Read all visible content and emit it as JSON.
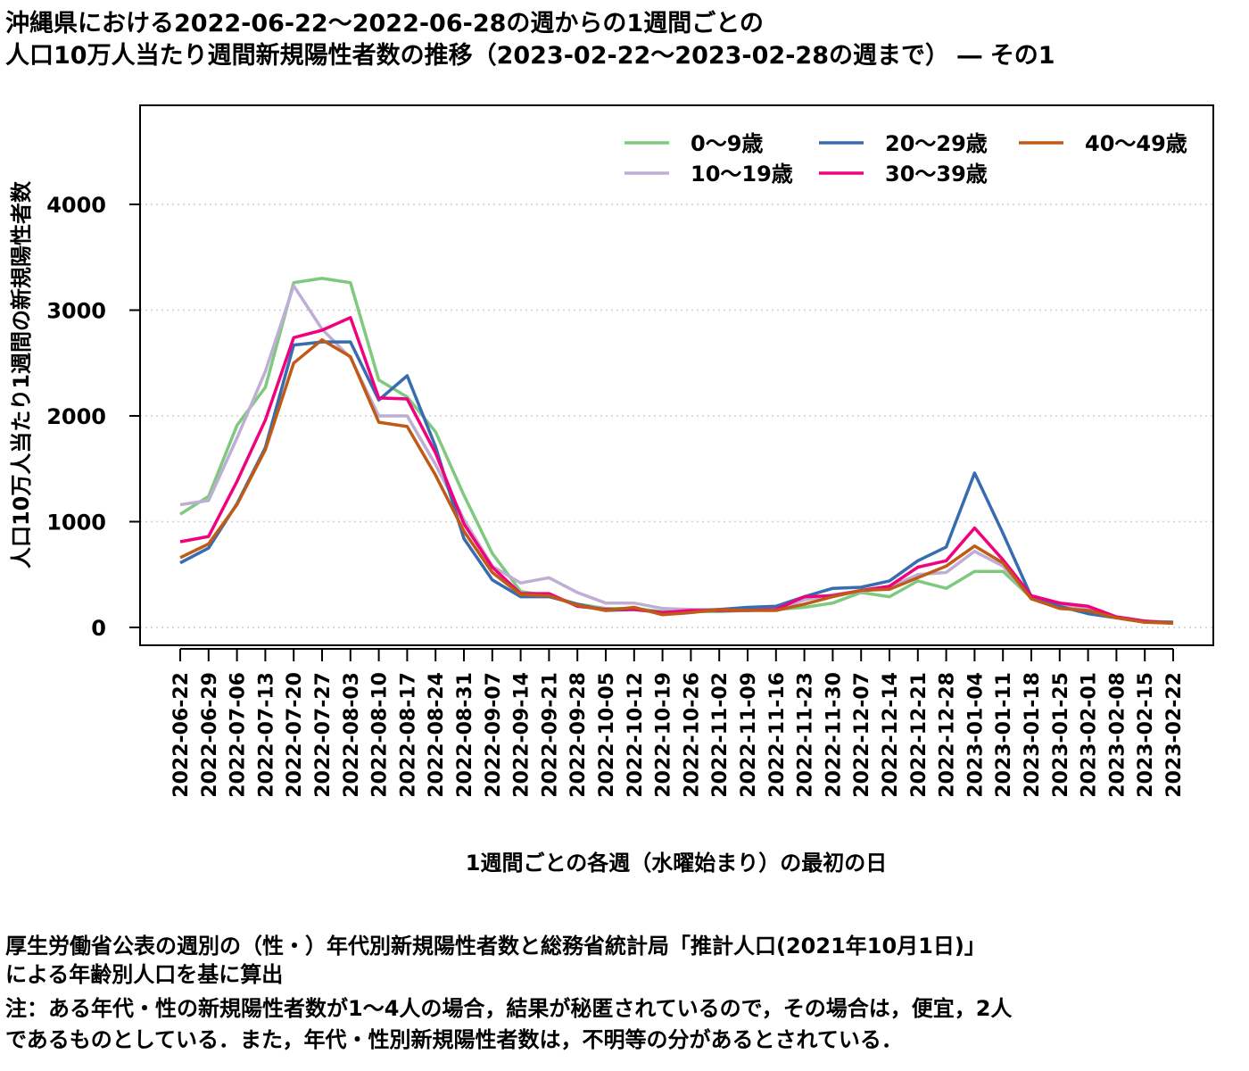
{
  "title_line1": "沖縄県における2022-06-22～2022-06-28の週からの1週間ごとの",
  "title_line2": "人口10万人当たり週間新規陽性者数の推移（2023-02-22～2023-02-28の週まで） ― その1",
  "notes": {
    "line1": "厚生労働省公表の週別の（性・）年代別新規陽性者数と総務省統計局「推計人口(2021年10月1日)」",
    "line2": "による年齢別人口を基に算出",
    "line3": "注：ある年代・性の新規陽性者数が1～4人の場合，結果が秘匿されているので，その場合は，便宜，2人",
    "line4": "であるものとしている．また，年代・性別新規陽性者数は，不明等の分があるとされている．"
  },
  "chart_data": {
    "type": "line",
    "xlabel": "1週間ごとの各週（水曜始まり）の最初の日",
    "ylabel": "人口10万人当たり1週間の新規陽性者数",
    "ylim": [
      -100,
      4950
    ],
    "yticks": [
      0,
      1000,
      2000,
      3000,
      4000
    ],
    "grid": "horizontal dotted",
    "legend_position": "top-right",
    "categories": [
      "2022-06-22",
      "2022-06-29",
      "2022-07-06",
      "2022-07-13",
      "2022-07-20",
      "2022-07-27",
      "2022-08-03",
      "2022-08-10",
      "2022-08-17",
      "2022-08-24",
      "2022-08-31",
      "2022-09-07",
      "2022-09-14",
      "2022-09-21",
      "2022-09-28",
      "2022-10-05",
      "2022-10-12",
      "2022-10-19",
      "2022-10-26",
      "2022-11-02",
      "2022-11-09",
      "2022-11-16",
      "2022-11-23",
      "2022-11-30",
      "2022-12-07",
      "2022-12-14",
      "2022-12-21",
      "2022-12-28",
      "2023-01-04",
      "2023-01-11",
      "2023-01-18",
      "2023-01-25",
      "2023-02-01",
      "2023-02-08",
      "2023-02-15",
      "2023-02-22"
    ],
    "series": [
      {
        "name": "0～9歳",
        "color": "#7fc97f",
        "values": [
          1070,
          1240,
          1910,
          2270,
          3260,
          3300,
          3260,
          2340,
          2180,
          1850,
          1250,
          700,
          340,
          300,
          220,
          180,
          180,
          150,
          150,
          150,
          160,
          170,
          190,
          230,
          330,
          290,
          440,
          370,
          530,
          530,
          280,
          200,
          160,
          90,
          60,
          50
        ]
      },
      {
        "name": "10～19歳",
        "color": "#beaed4",
        "values": [
          1160,
          1200,
          1790,
          2420,
          3230,
          2820,
          2550,
          2000,
          2000,
          1540,
          1020,
          580,
          420,
          470,
          330,
          230,
          230,
          180,
          170,
          170,
          170,
          170,
          260,
          310,
          340,
          380,
          500,
          520,
          720,
          580,
          280,
          220,
          180,
          90,
          50,
          40
        ]
      },
      {
        "name": "20～29歳",
        "color": "#386cb0",
        "values": [
          610,
          750,
          1170,
          1700,
          2670,
          2700,
          2700,
          2150,
          2380,
          1710,
          840,
          450,
          290,
          290,
          220,
          160,
          170,
          140,
          150,
          170,
          190,
          200,
          290,
          370,
          380,
          440,
          630,
          760,
          1460,
          890,
          290,
          200,
          130,
          90,
          50,
          50
        ]
      },
      {
        "name": "30～39歳",
        "color": "#f0027f",
        "values": [
          810,
          860,
          1380,
          1960,
          2740,
          2810,
          2930,
          2170,
          2160,
          1650,
          980,
          570,
          320,
          320,
          200,
          170,
          170,
          140,
          160,
          160,
          160,
          170,
          290,
          300,
          350,
          390,
          570,
          630,
          940,
          640,
          300,
          230,
          200,
          100,
          60,
          40
        ]
      },
      {
        "name": "40～49歳",
        "color": "#bf5b17",
        "values": [
          660,
          790,
          1160,
          1680,
          2500,
          2720,
          2560,
          1940,
          1900,
          1440,
          910,
          520,
          310,
          300,
          210,
          160,
          190,
          120,
          140,
          170,
          160,
          160,
          220,
          290,
          350,
          360,
          470,
          580,
          770,
          610,
          270,
          180,
          160,
          90,
          50,
          40
        ]
      }
    ]
  }
}
